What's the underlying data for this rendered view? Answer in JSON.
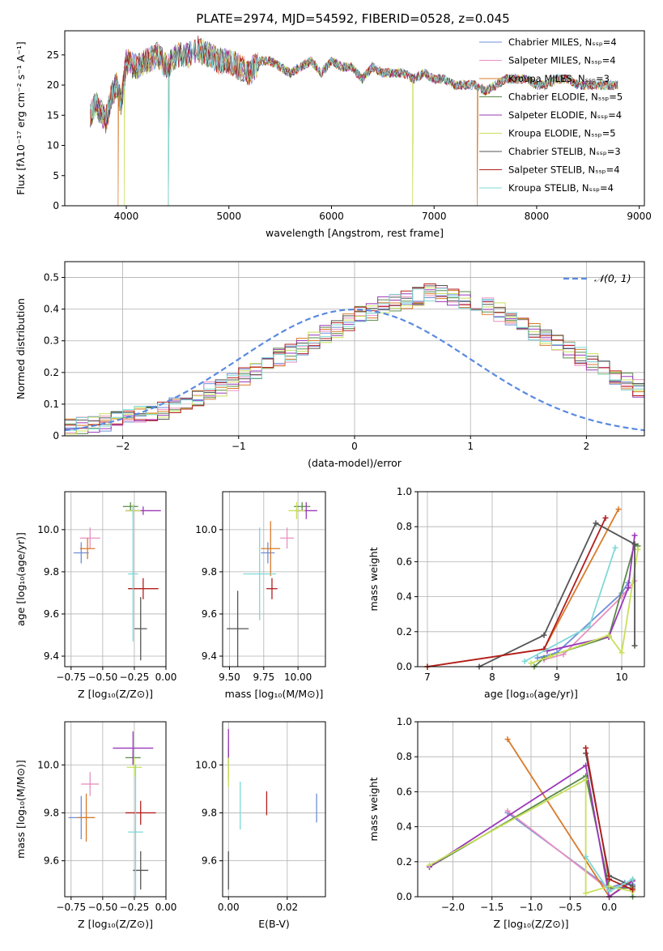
{
  "figure": {
    "title": "PLATE=2974, MJD=54592, FIBERID=0528, z=0.045"
  },
  "chart_data": [
    {
      "id": "spectrum",
      "type": "line",
      "xlabel": "wavelength [Angstrom, rest frame]",
      "ylabel": "Flux [fλ10⁻¹⁷ erg cm⁻² s⁻¹ A⁻¹]",
      "xlim": [
        3400,
        9050
      ],
      "ylim": [
        0,
        29
      ],
      "xticks": [
        4000,
        5000,
        6000,
        7000,
        8000,
        9000
      ],
      "yticks": [
        0,
        5,
        10,
        15,
        20,
        25
      ],
      "grid": false,
      "legend_position": "top-right",
      "data_envelope": {
        "x": [
          3650,
          3700,
          3800,
          3850,
          3900,
          3950,
          4000,
          4100,
          4200,
          4300,
          4400,
          4500,
          4600,
          4700,
          4800,
          4900,
          5000,
          5100,
          5200,
          5300,
          5400,
          5500,
          5600,
          5700,
          5800,
          5900,
          6000,
          6100,
          6200,
          6300,
          6400,
          6500,
          6600,
          6700,
          6800,
          6900,
          7000,
          7100,
          7200,
          7300,
          7400,
          7500,
          7600,
          7700,
          7800,
          7900,
          8000,
          8100,
          8200,
          8300,
          8400,
          8500,
          8600,
          8700,
          8800
        ],
        "y": [
          15,
          17,
          14,
          18,
          20,
          17,
          24,
          23,
          24,
          25,
          23,
          25,
          25,
          26,
          25,
          24,
          24,
          23,
          22,
          24,
          24,
          23,
          22,
          23,
          24,
          22,
          24,
          23,
          23,
          21,
          23,
          22,
          22,
          22,
          21,
          22,
          21,
          21,
          20,
          20,
          20,
          19,
          20,
          21,
          21,
          21,
          20,
          20,
          21,
          21,
          20,
          20,
          20,
          20,
          20
        ]
      },
      "series": [
        {
          "name": "Chabrier MILES, N_SSP=4",
          "color": "#6f8fd8"
        },
        {
          "name": "Salpeter MILES, N_SSP=4",
          "color": "#e890c0"
        },
        {
          "name": "Kroupa MILES, N_SSP=3",
          "color": "#d97a2a"
        },
        {
          "name": "Chabrier ELODIE, N_SSP=5",
          "color": "#5a8a4a"
        },
        {
          "name": "Salpeter ELODIE, N_SSP=4",
          "color": "#9a38b8"
        },
        {
          "name": "Kroupa ELODIE, N_SSP=5",
          "color": "#c8e05a"
        },
        {
          "name": "Chabrier STELIB, N_SSP=3",
          "color": "#555555"
        },
        {
          "name": "Salpeter STELIB, N_SSP=4",
          "color": "#b21e1e"
        },
        {
          "name": "Kroupa STELIB, N_SSP=4",
          "color": "#7fd8d8"
        }
      ]
    },
    {
      "id": "residuals",
      "type": "line",
      "xlabel": "(data-model)/error",
      "ylabel": "Normed distribution",
      "xlim": [
        -2.5,
        2.5
      ],
      "ylim": [
        0,
        0.55
      ],
      "xticks": [
        -2,
        -1,
        0,
        1,
        2
      ],
      "yticks": [
        0.0,
        0.1,
        0.2,
        0.3,
        0.4,
        0.5
      ],
      "grid": true,
      "legend_position": "top-right",
      "legend": "𝒩(0, 1)",
      "normal_curve_color": "#5a8ae0",
      "histogram_bin_width": 0.1,
      "histogram_range": [
        -2.5,
        2.5
      ],
      "histogram_heights": [
        0.03,
        0.03,
        0.035,
        0.04,
        0.05,
        0.055,
        0.065,
        0.075,
        0.08,
        0.095,
        0.11,
        0.12,
        0.14,
        0.15,
        0.17,
        0.19,
        0.21,
        0.23,
        0.25,
        0.26,
        0.28,
        0.3,
        0.32,
        0.34,
        0.36,
        0.38,
        0.39,
        0.41,
        0.42,
        0.43,
        0.44,
        0.45,
        0.45,
        0.44,
        0.43,
        0.42,
        0.41,
        0.39,
        0.37,
        0.35,
        0.33,
        0.31,
        0.29,
        0.27,
        0.25,
        0.23,
        0.21,
        0.19,
        0.17,
        0.15
      ]
    },
    {
      "id": "age_vs_Z",
      "type": "scatter",
      "xlabel": "Z [log₁₀(Z/Z⊙)]",
      "ylabel": "age  [log₁₀(age/yr)]",
      "xlim": [
        -0.8,
        0.0
      ],
      "ylim": [
        9.35,
        10.18
      ],
      "xticks": [
        "-0.75",
        "-0.50",
        "-0.25",
        "0.00"
      ],
      "xtickvals": [
        -0.75,
        -0.5,
        -0.25,
        0.0
      ],
      "yticks": [
        "9.4",
        "9.6",
        "9.8",
        "10.0"
      ],
      "ytickvals": [
        9.4,
        9.6,
        9.8,
        10.0
      ],
      "grid": true,
      "points": [
        {
          "x": -0.67,
          "y": 9.89,
          "xerr": 0.06,
          "yerr": 0.05,
          "color": "#6f8fd8"
        },
        {
          "x": -0.6,
          "y": 9.96,
          "xerr": 0.08,
          "yerr": 0.05,
          "color": "#e890c0"
        },
        {
          "x": -0.62,
          "y": 9.91,
          "xerr": 0.06,
          "yerr": 0.05,
          "color": "#d97a2a"
        },
        {
          "x": -0.28,
          "y": 10.11,
          "xerr": 0.06,
          "yerr": 0.02,
          "color": "#5a8a4a"
        },
        {
          "x": -0.18,
          "y": 10.09,
          "xerr": 0.14,
          "yerr": 0.02,
          "color": "#9a38b8"
        },
        {
          "x": -0.26,
          "y": 10.09,
          "xerr": 0.06,
          "yerr": 0.03,
          "color": "#c8e05a"
        },
        {
          "x": -0.2,
          "y": 9.53,
          "xerr": 0.05,
          "yerr": 0.15,
          "color": "#555555"
        },
        {
          "x": -0.18,
          "y": 9.72,
          "xerr": 0.12,
          "yerr": 0.05,
          "color": "#b21e1e"
        },
        {
          "x": -0.26,
          "y": 9.79,
          "xerr": 0.04,
          "yerr": 0.32,
          "color": "#7fd8d8"
        }
      ]
    },
    {
      "id": "age_vs_mass",
      "type": "scatter",
      "xlabel": "mass [log₁₀(M/M⊙)]",
      "xlim": [
        9.45,
        10.2
      ],
      "ylim": [
        9.35,
        10.18
      ],
      "xticks": [
        "9.50",
        "9.75",
        "10.00"
      ],
      "xtickvals": [
        9.5,
        9.75,
        10.0
      ],
      "yticks": [
        "9.4",
        "9.6",
        "9.8",
        "10.0"
      ],
      "ytickvals": [
        9.4,
        9.6,
        9.8,
        10.0
      ],
      "grid": true,
      "points": [
        {
          "x": 9.78,
          "y": 9.89,
          "xerr": 0.05,
          "yerr": 0.05,
          "color": "#6f8fd8"
        },
        {
          "x": 9.92,
          "y": 9.96,
          "xerr": 0.05,
          "yerr": 0.05,
          "color": "#e890c0"
        },
        {
          "x": 9.8,
          "y": 9.91,
          "xerr": 0.07,
          "yerr": 0.13,
          "color": "#d97a2a"
        },
        {
          "x": 10.03,
          "y": 10.11,
          "xerr": 0.06,
          "yerr": 0.02,
          "color": "#5a8a4a"
        },
        {
          "x": 10.06,
          "y": 10.09,
          "xerr": 0.08,
          "yerr": 0.04,
          "color": "#9a38b8"
        },
        {
          "x": 9.99,
          "y": 10.09,
          "xerr": 0.06,
          "yerr": 0.04,
          "color": "#c8e05a"
        },
        {
          "x": 9.56,
          "y": 9.53,
          "xerr": 0.08,
          "yerr": 0.18,
          "color": "#555555"
        },
        {
          "x": 9.81,
          "y": 9.72,
          "xerr": 0.04,
          "yerr": 0.05,
          "color": "#b21e1e"
        },
        {
          "x": 9.72,
          "y": 9.79,
          "xerr": 0.12,
          "yerr": 0.22,
          "color": "#7fd8d8"
        }
      ]
    },
    {
      "id": "weight_vs_age",
      "type": "line",
      "xlabel": "age  [log₁₀(age/yr)]",
      "ylabel": "mass weight",
      "xlim": [
        6.85,
        10.35
      ],
      "ylim": [
        0,
        1.0
      ],
      "xticks": [
        "7",
        "8",
        "9",
        "10"
      ],
      "xtickvals": [
        7,
        8,
        9,
        10
      ],
      "yticks": [
        "0.0",
        "0.2",
        "0.4",
        "0.6",
        "0.8",
        "1.0"
      ],
      "ytickvals": [
        0.0,
        0.2,
        0.4,
        0.6,
        0.8,
        1.0
      ],
      "grid": true,
      "series": [
        {
          "name": "Chabrier MILES, N_SSP=4",
          "color": "#6f8fd8",
          "x": [
            8.7,
            9.0,
            10.0,
            10.1
          ],
          "y": [
            0.05,
            0.08,
            0.42,
            0.48
          ]
        },
        {
          "name": "Salpeter MILES, N_SSP=4",
          "color": "#e890c0",
          "x": [
            8.8,
            9.1,
            10.0,
            10.2
          ],
          "y": [
            0.04,
            0.07,
            0.4,
            0.49
          ]
        },
        {
          "name": "Kroupa MILES, N_SSP=3",
          "color": "#d97a2a",
          "x": [
            7.0,
            8.8,
            9.95
          ],
          "y": [
            0.0,
            0.1,
            0.9
          ]
        },
        {
          "name": "Chabrier ELODIE, N_SSP=5",
          "color": "#5a8a4a",
          "x": [
            8.65,
            8.8,
            9.8,
            10.2,
            10.25
          ],
          "y": [
            0.0,
            0.05,
            0.17,
            0.7,
            0.69
          ]
        },
        {
          "name": "Salpeter ELODIE, N_SSP=4",
          "color": "#9a38b8",
          "x": [
            8.85,
            9.8,
            10.1,
            10.2
          ],
          "y": [
            0.09,
            0.17,
            0.45,
            0.75
          ]
        },
        {
          "name": "Kroupa ELODIE, N_SSP=5",
          "color": "#c8e05a",
          "x": [
            8.6,
            8.9,
            9.8,
            10.0,
            10.25
          ],
          "y": [
            0.02,
            0.06,
            0.18,
            0.08,
            0.67
          ]
        },
        {
          "name": "Chabrier STELIB, N_SSP=3",
          "color": "#555555",
          "x": [
            7.8,
            8.8,
            9.6,
            10.2,
            10.2
          ],
          "y": [
            0.0,
            0.18,
            0.82,
            0.7,
            0.12
          ]
        },
        {
          "name": "Salpeter STELIB, N_SSP=4",
          "color": "#b21e1e",
          "x": [
            7.0,
            8.8,
            9.75
          ],
          "y": [
            0.0,
            0.1,
            0.85
          ]
        },
        {
          "name": "Kroupa STELIB, N_SSP=4",
          "color": "#7fd8d8",
          "x": [
            8.5,
            9.5,
            9.9
          ],
          "y": [
            0.03,
            0.23,
            0.68
          ]
        }
      ]
    },
    {
      "id": "mass_vs_Z",
      "type": "scatter",
      "xlabel": "Z [log₁₀(Z/Z⊙)]",
      "ylabel": "mass [log₁₀(M/M⊙)]",
      "xlim": [
        -0.8,
        0.0
      ],
      "ylim": [
        9.45,
        10.18
      ],
      "xticks": [
        "-0.75",
        "-0.50",
        "-0.25",
        "0.00"
      ],
      "xtickvals": [
        -0.75,
        -0.5,
        -0.25,
        0.0
      ],
      "yticks": [
        "9.6",
        "9.8",
        "10.0"
      ],
      "ytickvals": [
        9.6,
        9.8,
        10.0
      ],
      "grid": true,
      "points": [
        {
          "x": -0.67,
          "y": 9.78,
          "xerr": 0.1,
          "yerr": 0.09,
          "color": "#6f8fd8"
        },
        {
          "x": -0.6,
          "y": 9.92,
          "xerr": 0.07,
          "yerr": 0.05,
          "color": "#e890c0"
        },
        {
          "x": -0.63,
          "y": 9.78,
          "xerr": 0.07,
          "yerr": 0.1,
          "color": "#d97a2a"
        },
        {
          "x": -0.26,
          "y": 10.03,
          "xerr": 0.06,
          "yerr": 0.03,
          "color": "#5a8a4a"
        },
        {
          "x": -0.26,
          "y": 10.07,
          "xerr": 0.16,
          "yerr": 0.07,
          "color": "#9a38b8"
        },
        {
          "x": -0.25,
          "y": 9.99,
          "xerr": 0.06,
          "yerr": 0.04,
          "color": "#c8e05a"
        },
        {
          "x": -0.2,
          "y": 9.56,
          "xerr": 0.06,
          "yerr": 0.08,
          "color": "#555555"
        },
        {
          "x": -0.2,
          "y": 9.8,
          "xerr": 0.12,
          "yerr": 0.05,
          "color": "#b21e1e"
        },
        {
          "x": -0.24,
          "y": 9.72,
          "xerr": 0.06,
          "yerr": 0.28,
          "color": "#7fd8d8"
        }
      ]
    },
    {
      "id": "mass_vs_EBV",
      "type": "scatter",
      "xlabel": "E(B-V)",
      "xlim": [
        -0.002,
        0.033
      ],
      "ylim": [
        9.45,
        10.18
      ],
      "xticks": [
        "0.00",
        "0.02"
      ],
      "xtickvals": [
        0.0,
        0.02
      ],
      "yticks": [
        "9.6",
        "9.8",
        "10.0"
      ],
      "ytickvals": [
        9.6,
        9.8,
        10.0
      ],
      "grid": true,
      "points": [
        {
          "x": 0.03,
          "y": 9.82,
          "yerr": 0.06,
          "color": "#6f8fd8"
        },
        {
          "x": 0.0,
          "y": 10.05,
          "yerr": 0.06,
          "color": "#e890c0"
        },
        {
          "x": 0.0,
          "y": 10.0,
          "yerr": 0.06,
          "color": "#d97a2a"
        },
        {
          "x": 0.0,
          "y": 10.03,
          "yerr": 0.04,
          "color": "#5a8a4a"
        },
        {
          "x": 0.0,
          "y": 10.08,
          "yerr": 0.07,
          "color": "#9a38b8"
        },
        {
          "x": 0.0,
          "y": 9.97,
          "yerr": 0.06,
          "color": "#c8e05a"
        },
        {
          "x": 0.0,
          "y": 9.56,
          "yerr": 0.08,
          "color": "#555555"
        },
        {
          "x": 0.013,
          "y": 9.84,
          "yerr": 0.05,
          "color": "#b21e1e"
        },
        {
          "x": 0.004,
          "y": 9.83,
          "yerr": 0.1,
          "color": "#7fd8d8"
        }
      ]
    },
    {
      "id": "weight_vs_Z",
      "type": "line",
      "xlabel": "Z [log₁₀(Z/Z⊙)]",
      "ylabel": "mass weight",
      "xlim": [
        -2.45,
        0.45
      ],
      "ylim": [
        0,
        1.0
      ],
      "xticks": [
        "-2.0",
        "-1.5",
        "-1.0",
        "-0.5",
        "0.0"
      ],
      "xtickvals": [
        -2.0,
        -1.5,
        -1.0,
        -0.5,
        0.0
      ],
      "yticks": [
        "0.0",
        "0.2",
        "0.4",
        "0.6",
        "0.8",
        "1.0"
      ],
      "ytickvals": [
        0.0,
        0.2,
        0.4,
        0.6,
        0.8,
        1.0
      ],
      "grid": true,
      "series": [
        {
          "name": "Chabrier MILES, N_SSP=4",
          "color": "#6f8fd8",
          "x": [
            -1.3,
            0.0,
            0.2,
            0.3
          ],
          "y": [
            0.48,
            0.05,
            0.08,
            0.07
          ]
        },
        {
          "name": "Salpeter MILES, N_SSP=4",
          "color": "#e890c0",
          "x": [
            -1.3,
            0.0,
            0.2,
            0.3
          ],
          "y": [
            0.49,
            0.04,
            0.07,
            0.09
          ]
        },
        {
          "name": "Kroupa MILES, N_SSP=3",
          "color": "#d97a2a",
          "x": [
            -1.3,
            0.0,
            0.3
          ],
          "y": [
            0.9,
            0.0,
            0.1
          ]
        },
        {
          "name": "Chabrier ELODIE, N_SSP=5",
          "color": "#5a8a4a",
          "x": [
            -2.3,
            -0.3,
            0.0,
            0.3,
            0.3
          ],
          "y": [
            0.17,
            0.69,
            0.05,
            0.05,
            0.0
          ]
        },
        {
          "name": "Salpeter ELODIE, N_SSP=4",
          "color": "#9a38b8",
          "x": [
            -2.3,
            -0.3,
            0.0,
            0.3
          ],
          "y": [
            0.17,
            0.75,
            0.0,
            0.09
          ]
        },
        {
          "name": "Kroupa ELODIE, N_SSP=5",
          "color": "#c8e05a",
          "x": [
            -2.3,
            -0.3,
            -0.3,
            0.0,
            0.3
          ],
          "y": [
            0.18,
            0.67,
            0.02,
            0.06,
            0.03
          ]
        },
        {
          "name": "Chabrier STELIB, N_SSP=3",
          "color": "#555555",
          "x": [
            -0.3,
            0.0,
            0.3
          ],
          "y": [
            0.82,
            0.12,
            0.06
          ]
        },
        {
          "name": "Salpeter STELIB, N_SSP=4",
          "color": "#b21e1e",
          "x": [
            -0.3,
            0.0,
            0.3
          ],
          "y": [
            0.85,
            0.1,
            0.04
          ]
        },
        {
          "name": "Kroupa STELIB, N_SSP=4",
          "color": "#7fd8d8",
          "x": [
            -0.3,
            0.0,
            0.3
          ],
          "y": [
            0.23,
            0.03,
            0.1
          ]
        }
      ]
    }
  ]
}
